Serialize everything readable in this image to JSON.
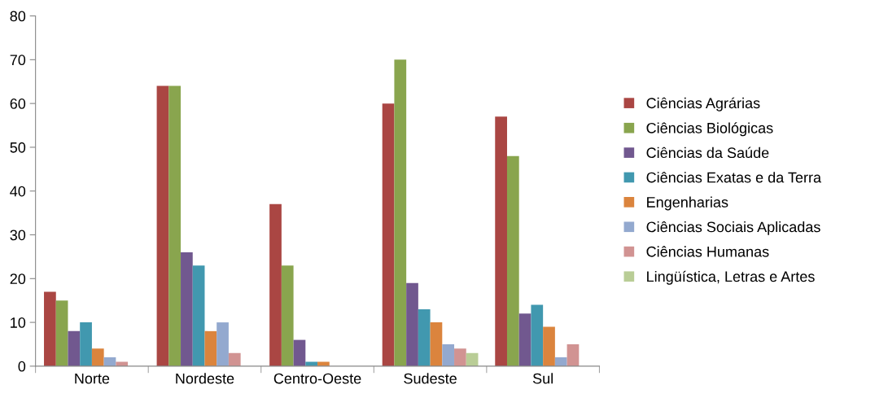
{
  "chart_data": {
    "type": "bar",
    "categories": [
      "Norte",
      "Nordeste",
      "Centro-Oeste",
      "Sudeste",
      "Sul"
    ],
    "series": [
      {
        "name": "Ciências Agrárias",
        "color": "#aa4643",
        "values": [
          17,
          64,
          37,
          60,
          57
        ]
      },
      {
        "name": "Ciências Biológicas",
        "color": "#89a54e",
        "values": [
          15,
          64,
          23,
          70,
          48
        ]
      },
      {
        "name": "Ciências da Saúde",
        "color": "#71588f",
        "values": [
          8,
          26,
          6,
          19,
          12
        ]
      },
      {
        "name": "Ciências Exatas e da Terra",
        "color": "#4198af",
        "values": [
          10,
          23,
          1,
          13,
          14
        ]
      },
      {
        "name": "Engenharias",
        "color": "#db843d",
        "values": [
          4,
          8,
          1,
          10,
          9
        ]
      },
      {
        "name": "Ciências Sociais Aplicadas",
        "color": "#93a9cf",
        "values": [
          2,
          10,
          0,
          5,
          2
        ]
      },
      {
        "name": "Ciências Humanas",
        "color": "#d19392",
        "values": [
          1,
          3,
          0,
          4,
          5
        ]
      },
      {
        "name": "Lingüística, Letras e Artes",
        "color": "#b9cd96",
        "values": [
          0,
          0,
          0,
          3,
          0
        ]
      }
    ],
    "ylim": [
      0,
      80
    ],
    "yticks": [
      0,
      10,
      20,
      30,
      40,
      50,
      60,
      70,
      80
    ],
    "grid": false,
    "legend": "right"
  }
}
